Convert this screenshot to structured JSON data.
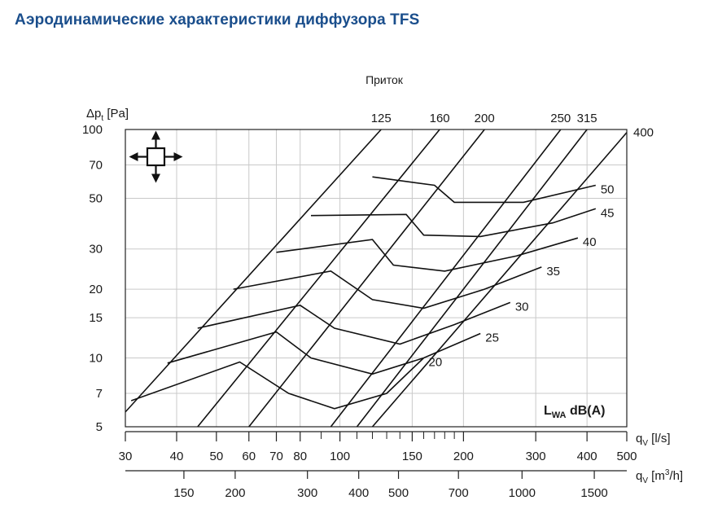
{
  "page": {
    "title": "Аэродинамические характеристики диффузора TFS"
  },
  "chart_data": {
    "type": "line",
    "subtitle": "Приток",
    "x_scale": "log",
    "y_scale": "log",
    "xlabel": "qV [l/s]",
    "xlabel_parts": {
      "main": "q",
      "sub": "V",
      "unit": " [l/s]"
    },
    "x2label_parts": {
      "main": "q",
      "sub": "V",
      "unit": " [m",
      "sup": "3",
      "unit_end": "/h]"
    },
    "ylabel_parts": {
      "main": "Δp",
      "sub": "t",
      "unit": " [Pa]"
    },
    "xlim": [
      30,
      500
    ],
    "ylim": [
      5,
      100
    ],
    "x_ticks": [
      30,
      40,
      50,
      60,
      70,
      80,
      100,
      150,
      200,
      300,
      400,
      500
    ],
    "x_minor_ticks": [
      90,
      110,
      120,
      130,
      140,
      160,
      170,
      180,
      190
    ],
    "x2_ticks": [
      150,
      200,
      300,
      400,
      500,
      700,
      1000,
      1500
    ],
    "y_ticks": [
      5,
      7,
      10,
      15,
      20,
      30,
      50,
      70,
      100
    ],
    "grid": true,
    "legend_box": {
      "main": "L",
      "sub": "WA",
      "rest": " dB(A)"
    },
    "icon": "four-way-arrows-icon",
    "series": [
      {
        "name": "125",
        "x": [
          30,
          126
        ],
        "y": [
          5.8,
          100
        ]
      },
      {
        "name": "160",
        "x": [
          45,
          175
        ],
        "y": [
          5,
          100
        ]
      },
      {
        "name": "200",
        "x": [
          60,
          225
        ],
        "y": [
          5,
          100
        ]
      },
      {
        "name": "250",
        "x": [
          95,
          345
        ],
        "y": [
          5,
          100
        ]
      },
      {
        "name": "315",
        "x": [
          110,
          400
        ],
        "y": [
          5,
          100
        ]
      },
      {
        "name": "400",
        "x": [
          120,
          500
        ],
        "y": [
          5,
          97
        ]
      }
    ],
    "noise_curves": [
      {
        "name": "20",
        "x": [
          31,
          57,
          75,
          97,
          130,
          160
        ],
        "y": [
          6.5,
          9.6,
          7.0,
          6.0,
          7.0,
          10.0
        ]
      },
      {
        "name": "25",
        "x": [
          38,
          70,
          85,
          120,
          160,
          220
        ],
        "y": [
          9.5,
          13.0,
          10.0,
          8.5,
          10.0,
          12.8
        ]
      },
      {
        "name": "30",
        "x": [
          45,
          80,
          97,
          140,
          190,
          260
        ],
        "y": [
          13.5,
          17.0,
          13.5,
          11.5,
          14.0,
          17.5
        ]
      },
      {
        "name": "35",
        "x": [
          55,
          95,
          120,
          160,
          225,
          310
        ],
        "y": [
          20.0,
          24.0,
          18.0,
          16.5,
          20.0,
          25.0
        ]
      },
      {
        "name": "40",
        "x": [
          70,
          120,
          135,
          180,
          270,
          380
        ],
        "y": [
          29.0,
          33.0,
          25.5,
          24.0,
          28.0,
          33.5
        ]
      },
      {
        "name": "45",
        "x": [
          85,
          145,
          160,
          220,
          330,
          420
        ],
        "y": [
          42.0,
          42.5,
          34.5,
          34.0,
          39.0,
          45.0
        ]
      },
      {
        "name": "50",
        "x": [
          120,
          170,
          190,
          280,
          420
        ],
        "y": [
          62.0,
          57.0,
          48.0,
          48.0,
          57.0
        ]
      }
    ]
  }
}
